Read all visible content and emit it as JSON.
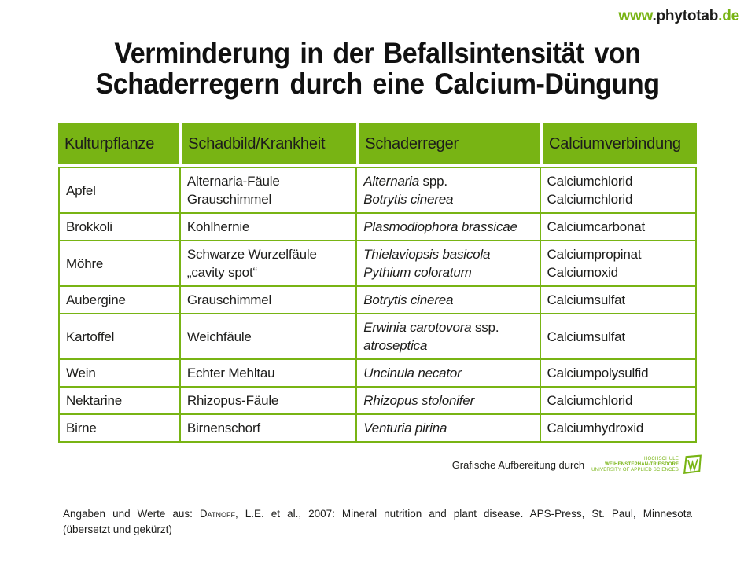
{
  "colors": {
    "accent_green": "#78b414",
    "text_black": "#1d1d1b"
  },
  "brand": {
    "prefix": "www",
    "middle": ".phytotab",
    "suffix": ".de"
  },
  "title": {
    "line1": "Verminderung in der Befallsintensität von",
    "line2": "Schaderregern durch eine Calcium-Düngung"
  },
  "table": {
    "headers": [
      "Kulturpflanze",
      "Schadbild/Krankheit",
      "Schaderreger",
      "Calciumverbindung"
    ],
    "rows": [
      {
        "cells": [
          [
            [
              {
                "t": "Apfel"
              }
            ]
          ],
          [
            [
              {
                "t": "Alternaria-Fäule"
              }
            ],
            [
              {
                "t": "Grauschimmel"
              }
            ]
          ],
          [
            [
              {
                "t": "Alternaria",
                "i": true
              },
              {
                "t": " spp."
              }
            ],
            [
              {
                "t": "Botrytis cinerea",
                "i": true
              }
            ]
          ],
          [
            [
              {
                "t": "Calciumchlorid"
              }
            ],
            [
              {
                "t": "Calciumchlorid"
              }
            ]
          ]
        ]
      },
      {
        "cells": [
          [
            [
              {
                "t": "Brokkoli"
              }
            ]
          ],
          [
            [
              {
                "t": "Kohlhernie"
              }
            ]
          ],
          [
            [
              {
                "t": "Plasmodiophora brassicae",
                "i": true
              }
            ]
          ],
          [
            [
              {
                "t": "Calciumcarbonat"
              }
            ]
          ]
        ]
      },
      {
        "cells": [
          [
            [
              {
                "t": "Möhre"
              }
            ]
          ],
          [
            [
              {
                "t": "Schwarze Wurzelfäule"
              }
            ],
            [
              {
                "t": "„cavity spot“"
              }
            ]
          ],
          [
            [
              {
                "t": "Thielaviopsis basicola",
                "i": true
              }
            ],
            [
              {
                "t": "Pythium coloratum",
                "i": true
              }
            ]
          ],
          [
            [
              {
                "t": "Calciumpropinat"
              }
            ],
            [
              {
                "t": "Calciumoxid"
              }
            ]
          ]
        ]
      },
      {
        "cells": [
          [
            [
              {
                "t": "Aubergine"
              }
            ]
          ],
          [
            [
              {
                "t": "Grauschimmel"
              }
            ]
          ],
          [
            [
              {
                "t": "Botrytis cinerea",
                "i": true
              }
            ]
          ],
          [
            [
              {
                "t": "Calciumsulfat"
              }
            ]
          ]
        ]
      },
      {
        "cells": [
          [
            [
              {
                "t": "Kartoffel"
              }
            ]
          ],
          [
            [
              {
                "t": "Weichfäule"
              }
            ]
          ],
          [
            [
              {
                "t": "Erwinia carotovora",
                "i": true
              },
              {
                "t": " ssp."
              }
            ],
            [
              {
                "t": "atroseptica",
                "i": true
              }
            ]
          ],
          [
            [
              {
                "t": "Calciumsulfat"
              }
            ]
          ]
        ]
      },
      {
        "cells": [
          [
            [
              {
                "t": "Wein"
              }
            ]
          ],
          [
            [
              {
                "t": "Echter Mehltau"
              }
            ]
          ],
          [
            [
              {
                "t": "Uncinula necator",
                "i": true
              }
            ]
          ],
          [
            [
              {
                "t": "Calciumpolysulfid"
              }
            ]
          ]
        ]
      },
      {
        "cells": [
          [
            [
              {
                "t": "Nektarine"
              }
            ]
          ],
          [
            [
              {
                "t": "Rhizopus-Fäule"
              }
            ]
          ],
          [
            [
              {
                "t": "Rhizopus stolonifer",
                "i": true
              }
            ]
          ],
          [
            [
              {
                "t": "Calciumchlorid"
              }
            ]
          ]
        ]
      },
      {
        "cells": [
          [
            [
              {
                "t": "Birne"
              }
            ]
          ],
          [
            [
              {
                "t": "Birnenschorf"
              }
            ]
          ],
          [
            [
              {
                "t": "Venturia pirina",
                "i": true
              }
            ]
          ],
          [
            [
              {
                "t": "Calciumhydroxid"
              }
            ]
          ]
        ]
      }
    ]
  },
  "attribution": {
    "label": "Grafische Aufbereitung durch",
    "hswt": {
      "line1": "HOCHSCHULE",
      "line2": "WEIHENSTEPHAN-TRIESDORF",
      "line3": "UNIVERSITY OF APPLIED SCIENCES"
    }
  },
  "citation": {
    "part1": "Angaben und Werte aus: ",
    "author_smallcaps": "Datnoff",
    "part2": ", L.E. et al., 2007: Mineral nutrition and plant disease. APS-Press, St. Paul, Minnesota",
    "line2": "(übersetzt und gekürzt)"
  }
}
